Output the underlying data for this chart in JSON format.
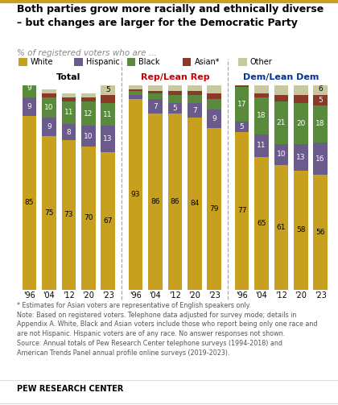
{
  "title_line1": "Both parties grow more racially and ethnically diverse",
  "title_line2": "– but changes are larger for the Democratic Party",
  "subtitle": "% of registered voters who are ...",
  "groups": [
    "Total",
    "Rep/Lean Rep",
    "Dem/Lean Dem"
  ],
  "group_colors": [
    "#000000",
    "#cc0000",
    "#003399"
  ],
  "years": [
    "'96",
    "'04",
    "'12",
    "'20",
    "'23"
  ],
  "categories": [
    "White",
    "Hispanic",
    "Black",
    "Asian*",
    "Other"
  ],
  "colors": [
    "#c8a020",
    "#6b5b8c",
    "#5a8a3c",
    "#8b3a2a",
    "#c8c8a0"
  ],
  "data": {
    "Total": {
      "White": [
        85,
        75,
        73,
        70,
        67
      ],
      "Hispanic": [
        9,
        9,
        8,
        10,
        13
      ],
      "Black": [
        9,
        10,
        11,
        12,
        11
      ],
      "Asian*": [
        1,
        2,
        2,
        2,
        4
      ],
      "Other": [
        1,
        2,
        2,
        2,
        5
      ]
    },
    "Rep/Lean Rep": {
      "White": [
        93,
        86,
        86,
        84,
        79
      ],
      "Hispanic": [
        2,
        7,
        5,
        7,
        9
      ],
      "Black": [
        2,
        3,
        4,
        4,
        5
      ],
      "Asian*": [
        1,
        1,
        2,
        2,
        3
      ],
      "Other": [
        2,
        3,
        3,
        3,
        4
      ]
    },
    "Dem/Lean Dem": {
      "White": [
        77,
        65,
        61,
        58,
        56
      ],
      "Hispanic": [
        5,
        11,
        10,
        13,
        16
      ],
      "Black": [
        17,
        18,
        21,
        20,
        18
      ],
      "Asian*": [
        1,
        2,
        3,
        4,
        5
      ],
      "Other": [
        2,
        4,
        5,
        5,
        6
      ]
    }
  },
  "labels": {
    "Total": {
      "White": [
        85,
        75,
        73,
        70,
        67
      ],
      "Hispanic": [
        9,
        9,
        8,
        10,
        13
      ],
      "Black": [
        9,
        10,
        11,
        12,
        11
      ],
      "Asian*": [
        null,
        null,
        null,
        null,
        null
      ],
      "Other": [
        null,
        null,
        null,
        null,
        5
      ]
    },
    "Rep/Lean Rep": {
      "White": [
        93,
        86,
        86,
        84,
        79
      ],
      "Hispanic": [
        null,
        7,
        5,
        7,
        9
      ],
      "Black": [
        null,
        null,
        null,
        null,
        null
      ],
      "Asian*": [
        null,
        null,
        null,
        null,
        null
      ],
      "Other": [
        null,
        null,
        null,
        null,
        null
      ]
    },
    "Dem/Lean Dem": {
      "White": [
        77,
        65,
        61,
        58,
        56
      ],
      "Hispanic": [
        5,
        11,
        10,
        13,
        16
      ],
      "Black": [
        17,
        18,
        21,
        20,
        18
      ],
      "Asian*": [
        null,
        null,
        null,
        null,
        5
      ],
      "Other": [
        null,
        null,
        null,
        null,
        6
      ]
    }
  },
  "footnote": "* Estimates for Asian voters are representative of English speakers only.\nNote: Based on registered voters. Telephone data adjusted for survey mode; details in\nAppendix A. White, Black and Asian voters include those who report being only one race and\nare not Hispanic. Hispanic voters are of any race. No answer responses not shown.\nSource: Annual totals of Pew Research Center telephone surveys (1994-2018) and\nAmerican Trends Panel annual profile online surveys (2019-2023).",
  "source": "PEW RESEARCH CENTER"
}
